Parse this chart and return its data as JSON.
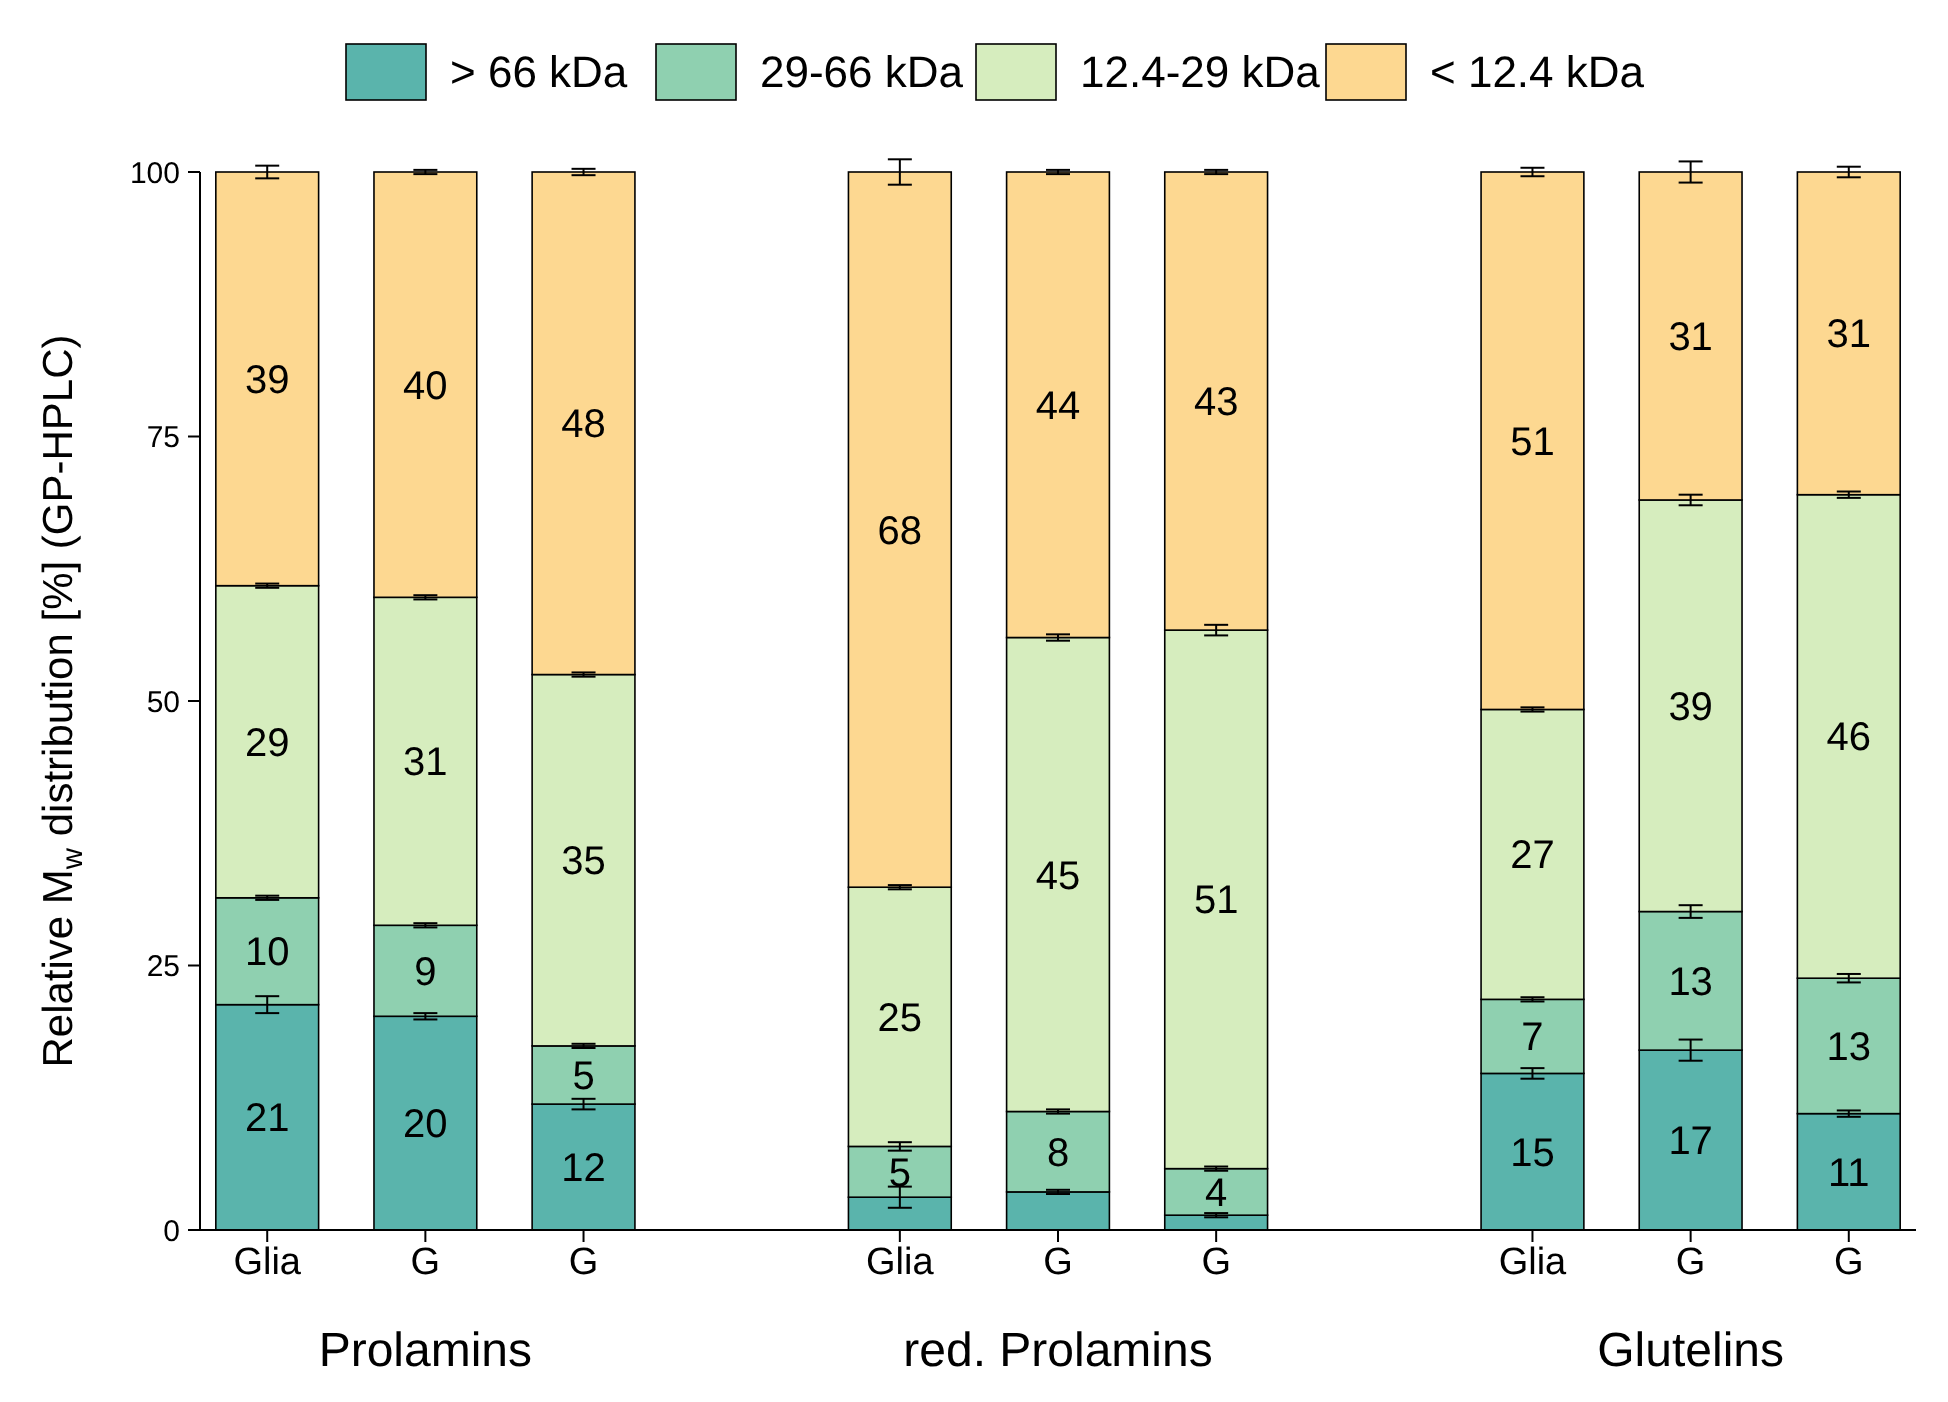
{
  "chart_data": {
    "type": "bar",
    "stacked": true,
    "ylabel": "Relative M$_{w}$ distribution [%] (GP-HPLC)",
    "categories": [
      "Glia",
      "G",
      "G",
      null,
      "Glia",
      "G",
      "G",
      null,
      "Glia",
      "G",
      "G"
    ],
    "series": [
      {
        "name": "> 66 kDa",
        "color": "#5ab4ac",
        "values": [
          21.3,
          20.2,
          11.9,
          null,
          3.1,
          3.6,
          1.4,
          null,
          14.8,
          17.0,
          11.0
        ],
        "errors": [
          0.8,
          0.3,
          0.5,
          null,
          1.0,
          0.2,
          0.2,
          null,
          0.5,
          1.0,
          0.3
        ],
        "value_labels": [
          "21",
          "20",
          "12",
          null,
          null,
          null,
          null,
          null,
          "15",
          "17",
          "11"
        ]
      },
      {
        "name": "29-66 kDa",
        "color": "#8fd0b0",
        "values": [
          10.1,
          8.6,
          5.5,
          null,
          4.8,
          7.6,
          4.4,
          null,
          7.0,
          13.1,
          12.8
        ],
        "errors": [
          0.2,
          0.2,
          0.2,
          null,
          0.4,
          0.2,
          0.2,
          null,
          0.2,
          0.6,
          0.4
        ],
        "value_labels": [
          "10",
          "9",
          "5",
          null,
          "5",
          "8",
          "4",
          null,
          "7",
          "13",
          "13"
        ]
      },
      {
        "name": "12.4-29 kDa",
        "color": "#d6edbe",
        "values": [
          29.5,
          31.0,
          35.1,
          null,
          24.5,
          44.8,
          50.9,
          null,
          27.4,
          38.9,
          45.7
        ],
        "errors": [
          0.2,
          0.2,
          0.2,
          null,
          0.2,
          0.3,
          0.5,
          null,
          0.2,
          0.5,
          0.3
        ],
        "value_labels": [
          "29",
          "31",
          "35",
          null,
          "25",
          "45",
          "51",
          null,
          "27",
          "39",
          "46"
        ]
      },
      {
        "name": "< 12.4 kDa",
        "color": "#fdd891",
        "values": [
          39.1,
          40.2,
          47.5,
          null,
          67.6,
          44.0,
          43.3,
          null,
          50.8,
          31.0,
          30.5
        ],
        "errors": [
          0.6,
          0.2,
          0.3,
          null,
          1.2,
          0.2,
          0.2,
          null,
          0.4,
          1.0,
          0.5
        ],
        "value_labels": [
          "39",
          "40",
          "48",
          null,
          "68",
          "44",
          "43",
          null,
          "51",
          "31",
          "31"
        ]
      }
    ],
    "ylim": [
      0,
      100
    ],
    "yticks": [
      0,
      25,
      50,
      75,
      100
    ],
    "grid": false,
    "legend": "top",
    "annotations": [
      "Prolamins",
      "red. Prolamins",
      "Glutelins"
    ]
  }
}
